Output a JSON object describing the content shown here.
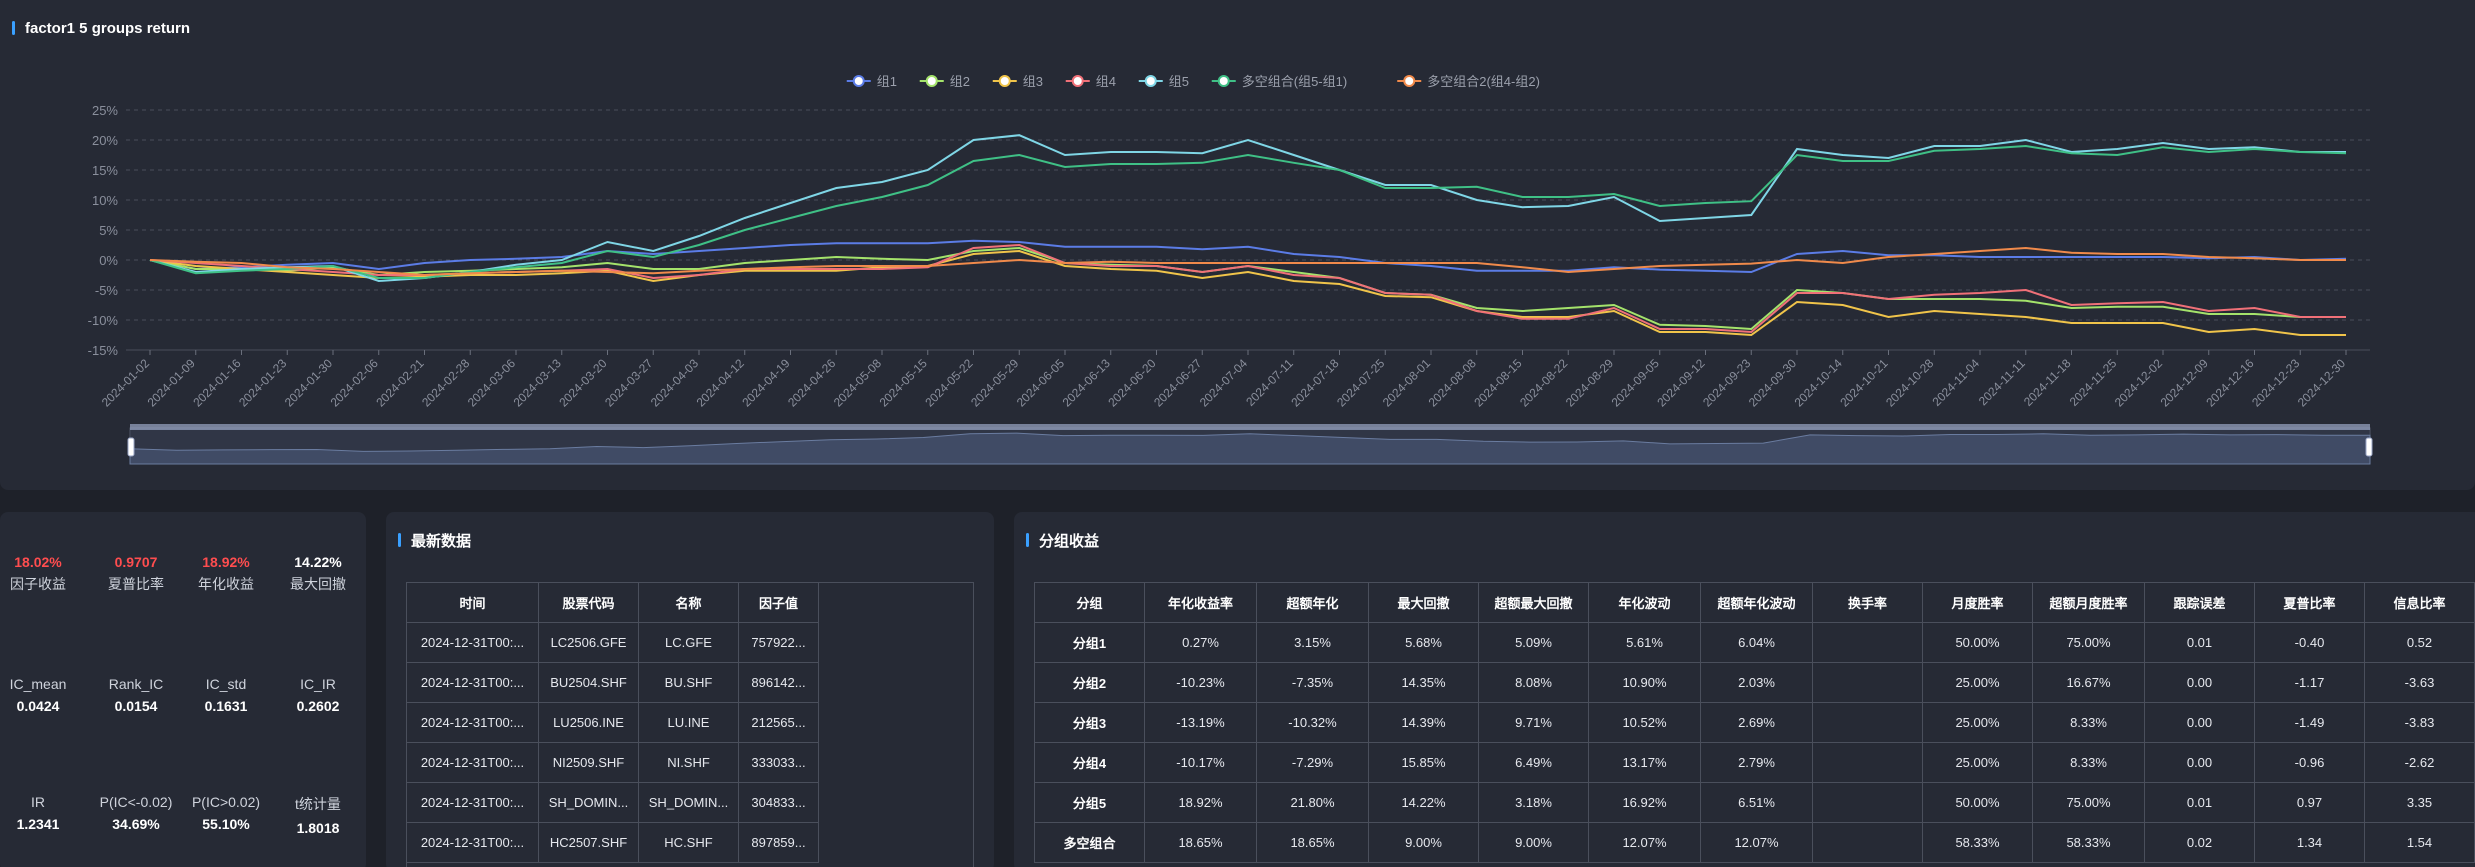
{
  "chart_panel": {
    "title": "factor1 5 groups return"
  },
  "chart_data": {
    "type": "line",
    "title": "factor1 5 groups return",
    "legend_position": "top-center",
    "grid": true,
    "ylim": [
      -15,
      25
    ],
    "y_ticks": [
      "25%",
      "20%",
      "15%",
      "10%",
      "5%",
      "0%",
      "-5%",
      "-10%",
      "-15%"
    ],
    "y_tick_values": [
      25,
      20,
      15,
      10,
      5,
      0,
      -5,
      -10,
      -15
    ],
    "x": [
      "2024-01-02",
      "2024-01-09",
      "2024-01-16",
      "2024-01-23",
      "2024-01-30",
      "2024-02-06",
      "2024-02-21",
      "2024-02-28",
      "2024-03-06",
      "2024-03-13",
      "2024-03-20",
      "2024-03-27",
      "2024-04-03",
      "2024-04-12",
      "2024-04-19",
      "2024-04-26",
      "2024-05-08",
      "2024-05-15",
      "2024-05-22",
      "2024-05-29",
      "2024-06-05",
      "2024-06-13",
      "2024-06-20",
      "2024-06-27",
      "2024-07-04",
      "2024-07-11",
      "2024-07-18",
      "2024-07-25",
      "2024-08-01",
      "2024-08-08",
      "2024-08-15",
      "2024-08-22",
      "2024-08-29",
      "2024-09-05",
      "2024-09-12",
      "2024-09-23",
      "2024-09-30",
      "2024-10-14",
      "2024-10-21",
      "2024-10-28",
      "2024-11-04",
      "2024-11-11",
      "2024-11-18",
      "2024-11-25",
      "2024-12-02",
      "2024-12-09",
      "2024-12-16",
      "2024-12-23",
      "2024-12-30"
    ],
    "series": [
      {
        "name": "组1",
        "color": "#5b7ce6",
        "values": [
          0,
          -1.5,
          -1.2,
          -0.8,
          -0.5,
          -1.5,
          -0.5,
          0,
          0.2,
          0.5,
          1.5,
          1,
          1.5,
          2,
          2.5,
          2.8,
          2.8,
          2.8,
          3.2,
          3.0,
          2.2,
          2.2,
          2.2,
          1.8,
          2.2,
          1.0,
          0.5,
          -0.5,
          -1.0,
          -1.8,
          -1.8,
          -1.8,
          -1.2,
          -1.6,
          -1.8,
          -2.0,
          1.0,
          1.5,
          0.8,
          0.8,
          0.5,
          0.5,
          0.5,
          0.5,
          0.5,
          0.3,
          0.5,
          0,
          0.2
        ]
      },
      {
        "name": "组2",
        "color": "#a4e36b",
        "values": [
          0,
          -1.5,
          -1.5,
          -1.8,
          -1.2,
          -2.5,
          -2.0,
          -1.8,
          -1.5,
          -1.2,
          -0.5,
          -1.5,
          -1.5,
          -0.5,
          0,
          0.5,
          0.2,
          0,
          1.5,
          2,
          -0.5,
          -0.8,
          -1.0,
          -2.0,
          -1.0,
          -2.0,
          -3.0,
          -5.5,
          -5.8,
          -8.0,
          -8.5,
          -8.0,
          -7.5,
          -10.8,
          -11.0,
          -11.5,
          -5.0,
          -5.5,
          -6.5,
          -6.5,
          -6.5,
          -6.8,
          -8.0,
          -7.8,
          -7.8,
          -9.0,
          -9.0,
          -9.5,
          -9.5
        ]
      },
      {
        "name": "组3",
        "color": "#f0c44a",
        "values": [
          0,
          -1,
          -1.5,
          -2,
          -2.5,
          -3,
          -2.8,
          -2.5,
          -2.5,
          -2.2,
          -1.8,
          -3.5,
          -2.5,
          -1.8,
          -1.8,
          -1.8,
          -1.2,
          -1.0,
          1.0,
          1.5,
          -1.0,
          -1.5,
          -1.8,
          -3.0,
          -2.0,
          -3.5,
          -4.0,
          -6.0,
          -6.2,
          -8.5,
          -9.5,
          -9.5,
          -8.5,
          -12.0,
          -12.0,
          -12.5,
          -7.0,
          -7.5,
          -9.5,
          -8.5,
          -9.0,
          -9.5,
          -10.5,
          -10.5,
          -10.5,
          -12.0,
          -11.5,
          -12.5,
          -12.5
        ]
      },
      {
        "name": "组4",
        "color": "#f07078",
        "values": [
          0,
          -0.5,
          -1,
          -1.5,
          -2,
          -2.5,
          -2.5,
          -2.2,
          -2,
          -1.8,
          -1.5,
          -3.0,
          -2.5,
          -1.5,
          -1.5,
          -1.5,
          -1.5,
          -1.2,
          2.0,
          2.5,
          -0.5,
          -1.0,
          -1.0,
          -2.0,
          -1.0,
          -2.5,
          -3.0,
          -5.5,
          -5.8,
          -8.5,
          -9.8,
          -9.8,
          -8.0,
          -11.5,
          -11.5,
          -12.0,
          -5.5,
          -5.5,
          -6.5,
          -5.8,
          -5.5,
          -5.0,
          -7.5,
          -7.2,
          -7.0,
          -8.5,
          -8.0,
          -9.5,
          -9.5
        ]
      },
      {
        "name": "组5",
        "color": "#7fd6e6",
        "values": [
          0,
          -2,
          -1.5,
          -1.2,
          -1,
          -3.5,
          -3.0,
          -2.0,
          -0.8,
          0,
          3.0,
          1.5,
          4.0,
          7.0,
          9.5,
          12.0,
          13.0,
          15.0,
          20.0,
          20.8,
          17.5,
          18.0,
          18.0,
          17.8,
          20.0,
          17.5,
          15.0,
          12.5,
          12.5,
          10.0,
          8.8,
          9.0,
          10.5,
          6.5,
          7.0,
          7.5,
          18.5,
          17.5,
          17.0,
          19.0,
          19.0,
          20.0,
          18.0,
          18.5,
          19.5,
          18.5,
          18.8,
          18.0,
          18.0
        ]
      },
      {
        "name": "多空组合(组5-组1)",
        "color": "#3fc086",
        "values": [
          0,
          -2.2,
          -1.8,
          -1.5,
          -1.0,
          -3.0,
          -3.0,
          -2.0,
          -1.2,
          -0.5,
          1.5,
          0.5,
          2.5,
          5.0,
          7.0,
          9.0,
          10.5,
          12.5,
          16.5,
          17.5,
          15.5,
          16.0,
          16.0,
          16.2,
          17.5,
          16.2,
          15.0,
          12.0,
          12.0,
          12.2,
          10.5,
          10.5,
          11.0,
          9.0,
          9.5,
          9.8,
          17.5,
          16.5,
          16.5,
          18.2,
          18.5,
          19.0,
          17.8,
          17.5,
          18.8,
          18.0,
          18.5,
          18.0,
          17.8
        ]
      },
      {
        "name": "多空组合2(组4-组2)",
        "color": "#f08a4b",
        "values": [
          0,
          -0.3,
          -0.5,
          -1.2,
          -1.5,
          -2.0,
          -2.5,
          -2.2,
          -2.0,
          -1.8,
          -2.0,
          -2.2,
          -1.8,
          -1.5,
          -1.2,
          -1.0,
          -1.0,
          -1.0,
          -0.5,
          0,
          -0.5,
          -0.3,
          -0.5,
          -0.5,
          -0.5,
          -0.5,
          -0.5,
          -0.5,
          -0.5,
          -0.5,
          -1.2,
          -2.0,
          -1.5,
          -1.0,
          -0.8,
          -0.6,
          0,
          -0.5,
          0.5,
          1.0,
          1.5,
          2.0,
          1.2,
          1.0,
          1.0,
          0.5,
          0.3,
          0,
          0
        ]
      }
    ]
  },
  "stats": {
    "row1": [
      {
        "value": "18.02%",
        "label": "因子收益",
        "red": true
      },
      {
        "value": "0.9707",
        "label": "夏普比率",
        "red": true
      },
      {
        "value": "18.92%",
        "label": "年化收益",
        "red": true
      },
      {
        "value": "14.22%",
        "label": "最大回撤",
        "red": false
      }
    ],
    "row2": [
      {
        "label": "IC_mean",
        "value": "0.0424"
      },
      {
        "label": "Rank_IC",
        "value": "0.0154"
      },
      {
        "label": "IC_std",
        "value": "0.1631"
      },
      {
        "label": "IC_IR",
        "value": "0.2602"
      }
    ],
    "row3": [
      {
        "label": "IR",
        "value": "1.2341"
      },
      {
        "label": "P(IC<-0.02)",
        "value": "34.69%"
      },
      {
        "label": "P(IC>0.02)",
        "value": "55.10%"
      },
      {
        "label": "t统计量",
        "value": "1.8018"
      }
    ]
  },
  "latest": {
    "title": "最新数据",
    "headers": [
      "时间",
      "股票代码",
      "名称",
      "因子值"
    ],
    "rows": [
      [
        "2024-12-31T00:...",
        "LC2506.GFE",
        "LC.GFE",
        "757922..."
      ],
      [
        "2024-12-31T00:...",
        "BU2504.SHF",
        "BU.SHF",
        "896142..."
      ],
      [
        "2024-12-31T00:...",
        "LU2506.INE",
        "LU.INE",
        "212565..."
      ],
      [
        "2024-12-31T00:...",
        "NI2509.SHF",
        "NI.SHF",
        "333033..."
      ],
      [
        "2024-12-31T00:...",
        "SH_DOMIN...",
        "SH_DOMIN...",
        "304833..."
      ],
      [
        "2024-12-31T00:...",
        "HC2507.SHF",
        "HC.SHF",
        "897859..."
      ]
    ]
  },
  "group": {
    "title": "分组收益",
    "headers": [
      "分组",
      "年化收益率",
      "超额年化",
      "最大回撤",
      "超额最大回撤",
      "年化波动",
      "超额年化波动",
      "换手率",
      "月度胜率",
      "超额月度胜率",
      "跟踪误差",
      "夏普比率",
      "信息比率"
    ],
    "rows": [
      [
        "分组1",
        "0.27%",
        "3.15%",
        "5.68%",
        "5.09%",
        "5.61%",
        "6.04%",
        "",
        "50.00%",
        "75.00%",
        "0.01",
        "-0.40",
        "0.52"
      ],
      [
        "分组2",
        "-10.23%",
        "-7.35%",
        "14.35%",
        "8.08%",
        "10.90%",
        "2.03%",
        "",
        "25.00%",
        "16.67%",
        "0.00",
        "-1.17",
        "-3.63"
      ],
      [
        "分组3",
        "-13.19%",
        "-10.32%",
        "14.39%",
        "9.71%",
        "10.52%",
        "2.69%",
        "",
        "25.00%",
        "8.33%",
        "0.00",
        "-1.49",
        "-3.83"
      ],
      [
        "分组4",
        "-10.17%",
        "-7.29%",
        "15.85%",
        "6.49%",
        "13.17%",
        "2.79%",
        "",
        "25.00%",
        "8.33%",
        "0.00",
        "-0.96",
        "-2.62"
      ],
      [
        "分组5",
        "18.92%",
        "21.80%",
        "14.22%",
        "3.18%",
        "16.92%",
        "6.51%",
        "",
        "50.00%",
        "75.00%",
        "0.01",
        "0.97",
        "3.35"
      ],
      [
        "多空组合",
        "18.65%",
        "18.65%",
        "9.00%",
        "9.00%",
        "12.07%",
        "12.07%",
        "",
        "58.33%",
        "58.33%",
        "0.02",
        "1.34",
        "1.54"
      ]
    ]
  }
}
